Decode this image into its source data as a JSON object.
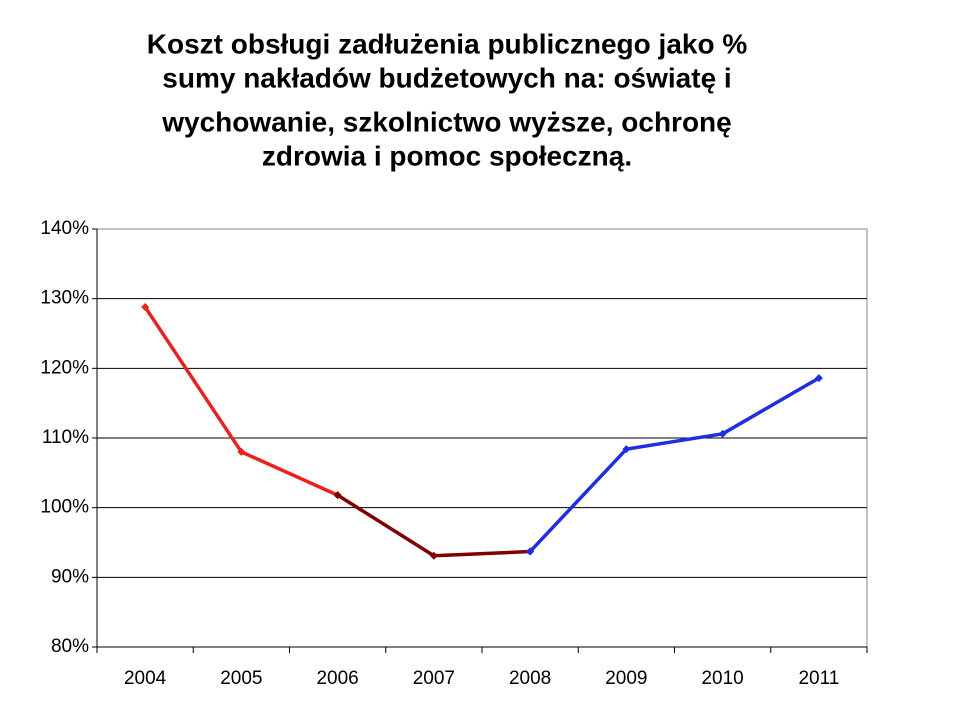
{
  "chart_data": {
    "type": "line",
    "title": [
      "Koszt obsługi zadłużenia publicznego jako %",
      "sumy nakładów budżetowych na: oświatę i",
      "wychowanie, szkolnictwo wyższe, ochronę",
      "zdrowia i pomoc społeczną."
    ],
    "categories": [
      "2004",
      "2005",
      "2006",
      "2007",
      "2008",
      "2009",
      "2010",
      "2011"
    ],
    "series": [
      {
        "color": "#e8231f",
        "values": [
          128.8,
          108,
          101.8,
          null,
          null,
          null,
          null,
          null
        ]
      },
      {
        "color": "#800000",
        "values": [
          null,
          null,
          101.8,
          93.1,
          93.7,
          null,
          null,
          null
        ]
      },
      {
        "color": "#1f2ee0",
        "values": [
          null,
          null,
          null,
          null,
          93.7,
          108.4,
          110.6,
          118.6
        ]
      }
    ],
    "ylim": [
      80,
      140
    ],
    "yticks": [
      {
        "value": 80,
        "label": "80%"
      },
      {
        "value": 90,
        "label": "90%"
      },
      {
        "value": 100,
        "label": "100%"
      },
      {
        "value": 110,
        "label": "110%"
      },
      {
        "value": 120,
        "label": "120%"
      },
      {
        "value": 130,
        "label": "130%"
      },
      {
        "value": 140,
        "label": "140%"
      }
    ],
    "grid": true
  }
}
